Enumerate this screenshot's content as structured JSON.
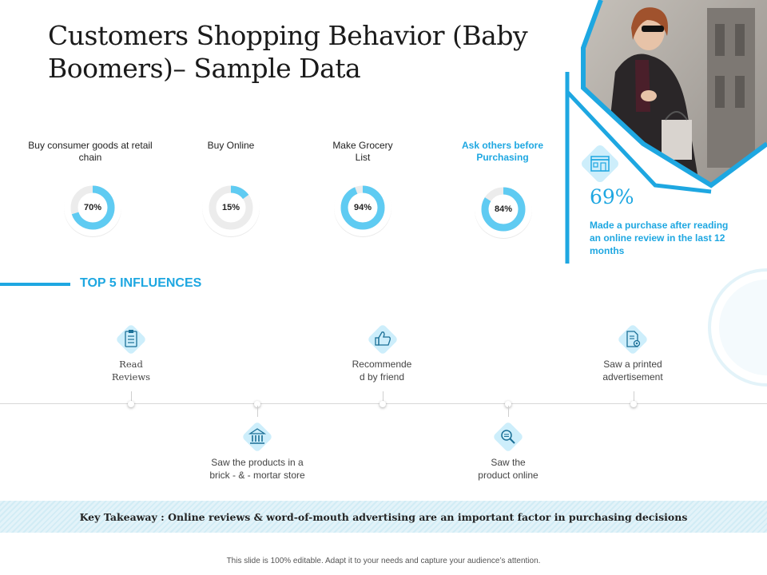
{
  "slide": {
    "title": "Customers Shopping Behavior (Baby Boomers)– Sample Data",
    "accent_color": "#1ea7e1",
    "light_color": "#5fcbf2"
  },
  "metrics": [
    {
      "label": "Buy consumer goods at retail chain",
      "value_label": "70%",
      "value": 70,
      "highlight": false
    },
    {
      "label": "Buy Online",
      "value_label": "15%",
      "value": 15,
      "highlight": false
    },
    {
      "label": "Make Grocery List",
      "value_label": "94%",
      "value": 94,
      "highlight": false
    },
    {
      "label": "Ask others before Purchasing",
      "value_label": "84%",
      "value": 84,
      "highlight": true
    }
  ],
  "callout": {
    "icon": "store-icon",
    "stat": "69%",
    "description": "Made a purchase after reading an online review in the last 12 months"
  },
  "influences": {
    "title": "TOP 5 INFLUENCES",
    "items": [
      {
        "label": "Read Reviews",
        "icon": "clipboard-icon"
      },
      {
        "label": "Saw the products in a brick - & - mortar store",
        "icon": "bank-icon"
      },
      {
        "label": "Recommende d by friend",
        "icon": "thumbs-up-icon"
      },
      {
        "label": "Saw the product online",
        "icon": "magnifier-icon"
      },
      {
        "label": "Saw a printed advertisement",
        "icon": "document-gear-icon"
      }
    ]
  },
  "takeaway": "Key Takeaway : Online reviews & word-of-mouth advertising are an important factor in purchasing decisions",
  "footer": "This slide is 100% editable. Adapt it to your needs and capture your audience’s attention."
}
